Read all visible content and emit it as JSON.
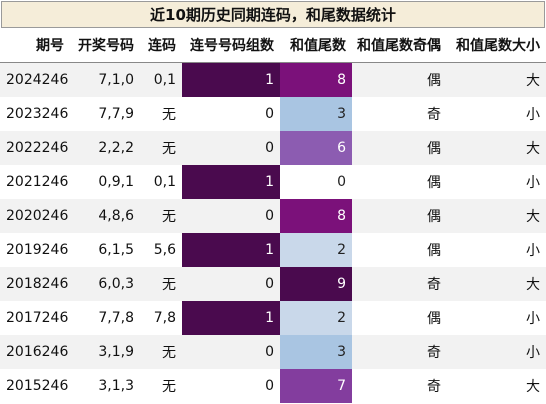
{
  "title": "近10期历史同期连码，和尾数据统计",
  "columns": [
    "期号",
    "开奖号码",
    "连码",
    "连号号码组数",
    "和值尾数",
    "和值尾数奇偶",
    "和值尾数大小"
  ],
  "rows": [
    {
      "period": "2024246",
      "numbers": "7,1,0",
      "consec": "0,1",
      "groups": "1",
      "tail": "8",
      "parity": "偶",
      "size": "大"
    },
    {
      "period": "2023246",
      "numbers": "7,7,9",
      "consec": "无",
      "groups": "0",
      "tail": "3",
      "parity": "奇",
      "size": "小"
    },
    {
      "period": "2022246",
      "numbers": "2,2,2",
      "consec": "无",
      "groups": "0",
      "tail": "6",
      "parity": "偶",
      "size": "大"
    },
    {
      "period": "2021246",
      "numbers": "0,9,1",
      "consec": "0,1",
      "groups": "1",
      "tail": "0",
      "parity": "偶",
      "size": "小"
    },
    {
      "period": "2020246",
      "numbers": "4,8,6",
      "consec": "无",
      "groups": "0",
      "tail": "8",
      "parity": "偶",
      "size": "大"
    },
    {
      "period": "2019246",
      "numbers": "6,1,5",
      "consec": "5,6",
      "groups": "1",
      "tail": "2",
      "parity": "偶",
      "size": "小"
    },
    {
      "period": "2018246",
      "numbers": "6,0,3",
      "consec": "无",
      "groups": "0",
      "tail": "9",
      "parity": "奇",
      "size": "大"
    },
    {
      "period": "2017246",
      "numbers": "7,7,8",
      "consec": "7,8",
      "groups": "1",
      "tail": "2",
      "parity": "偶",
      "size": "小"
    },
    {
      "period": "2016246",
      "numbers": "3,1,9",
      "consec": "无",
      "groups": "0",
      "tail": "3",
      "parity": "奇",
      "size": "小"
    },
    {
      "period": "2015246",
      "numbers": "3,1,3",
      "consec": "无",
      "groups": "0",
      "tail": "7",
      "parity": "奇",
      "size": "大"
    }
  ],
  "colors": {
    "title_bg": "#f5edd9",
    "groups_heat": "#4a0a4e",
    "tail_heat": {
      "0": "#ffffff",
      "2": "#c9d8ea",
      "3": "#a9c5e2",
      "6": "#8c5cb1",
      "7": "#833d9e",
      "8": "#7b117a",
      "9": "#4a0a4e"
    }
  }
}
